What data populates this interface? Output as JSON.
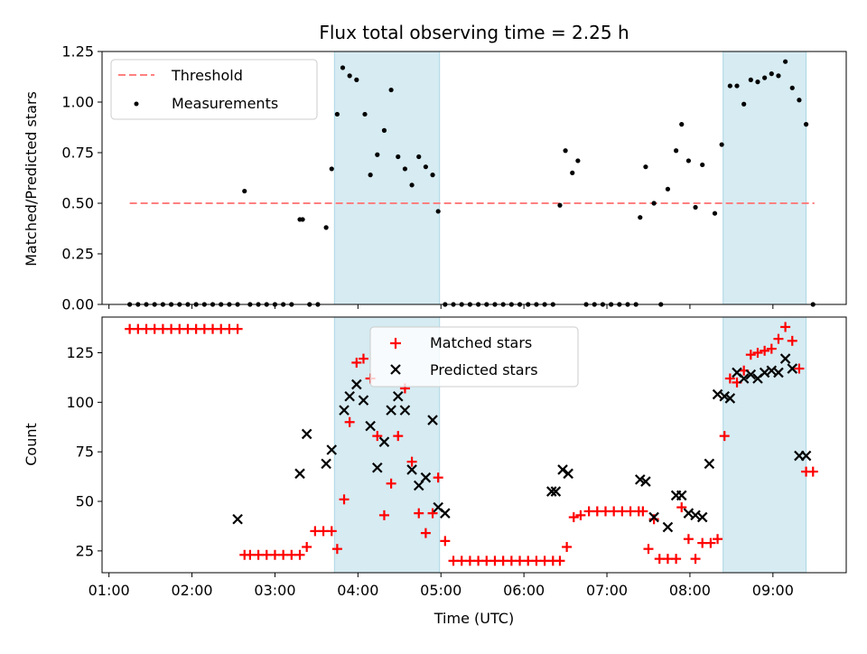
{
  "chart_data": [
    {
      "type": "scatter",
      "title": "Flux total observing time = 2.25 h",
      "xlabel": "",
      "ylabel": "Matched/Predicted stars",
      "ylim": [
        0,
        1.25
      ],
      "yticks": [
        "0.00",
        "0.25",
        "0.50",
        "0.75",
        "1.00",
        "1.25"
      ],
      "legend": {
        "position": "upper-left",
        "entries": [
          "Threshold",
          "Measurements"
        ]
      },
      "threshold": {
        "name": "Threshold",
        "y": 0.5,
        "x_range": [
          "01:15",
          "09:30"
        ],
        "color": "#ff8080",
        "style": "dashed"
      },
      "shaded_intervals": [
        [
          "03:43",
          "04:59"
        ],
        [
          "08:24",
          "09:24"
        ]
      ],
      "series": [
        {
          "name": "Measurements",
          "color": "#000000",
          "x": [
            "01:15",
            "01:21",
            "01:27",
            "01:33",
            "01:39",
            "01:45",
            "01:51",
            "01:57",
            "02:03",
            "02:09",
            "02:15",
            "02:21",
            "02:27",
            "02:33",
            "02:38",
            "02:42",
            "02:48",
            "02:54",
            "03:00",
            "03:06",
            "03:12",
            "03:18",
            "03:20",
            "03:25",
            "03:31",
            "03:37",
            "03:41",
            "03:45",
            "03:49",
            "03:54",
            "03:59",
            "04:05",
            "04:09",
            "04:14",
            "04:19",
            "04:24",
            "04:29",
            "04:34",
            "04:39",
            "04:44",
            "04:49",
            "04:54",
            "04:58",
            "05:03",
            "05:09",
            "05:15",
            "05:21",
            "05:27",
            "05:33",
            "05:39",
            "05:45",
            "05:51",
            "05:57",
            "06:03",
            "06:09",
            "06:15",
            "06:21",
            "06:26",
            "06:30",
            "06:35",
            "06:39",
            "06:45",
            "06:51",
            "06:57",
            "07:03",
            "07:09",
            "07:15",
            "07:21",
            "07:24",
            "07:28",
            "07:34",
            "07:39",
            "07:44",
            "07:50",
            "07:54",
            "07:59",
            "08:04",
            "08:09",
            "08:18",
            "08:23",
            "08:29",
            "08:34",
            "08:39",
            "08:44",
            "08:49",
            "08:54",
            "08:59",
            "09:04",
            "09:09",
            "09:14",
            "09:19",
            "09:24",
            "09:29"
          ],
          "y": [
            0,
            0,
            0,
            0,
            0,
            0,
            0,
            0,
            0,
            0,
            0,
            0,
            0,
            0,
            0.56,
            0,
            0,
            0,
            0,
            0,
            0,
            0.42,
            0.42,
            0,
            0,
            0.38,
            0.67,
            0.94,
            1.17,
            1.13,
            1.11,
            0.94,
            0.64,
            0.74,
            0.86,
            1.06,
            0.73,
            0.67,
            0.59,
            0.73,
            0.68,
            0.64,
            0.46,
            0,
            0,
            0,
            0,
            0,
            0,
            0,
            0,
            0,
            0,
            0,
            0,
            0,
            0,
            0.49,
            0.76,
            0.65,
            0.71,
            0,
            0,
            0,
            0,
            0,
            0,
            0,
            0.43,
            0.68,
            0.5,
            0,
            0.57,
            0.76,
            0.89,
            0.71,
            0.48,
            0.69,
            0.45,
            0.79,
            1.08,
            1.08,
            0.99,
            1.11,
            1.1,
            1.12,
            1.14,
            1.13,
            1.2,
            1.07,
            1.01,
            0.89,
            0
          ]
        }
      ]
    },
    {
      "type": "scatter",
      "title": "",
      "xlabel": "Time (UTC)",
      "ylabel": "Count",
      "ylim": [
        14,
        143
      ],
      "yticks": [
        "25",
        "50",
        "75",
        "100",
        "125"
      ],
      "xticks": [
        "01:00",
        "02:00",
        "03:00",
        "04:00",
        "05:00",
        "06:00",
        "07:00",
        "08:00",
        "09:00"
      ],
      "legend": {
        "position": "upper-center",
        "entries": [
          "Matched stars",
          "Predicted stars"
        ]
      },
      "shaded_intervals": [
        [
          "03:43",
          "04:59"
        ],
        [
          "08:24",
          "09:24"
        ]
      ],
      "series": [
        {
          "name": "Matched stars",
          "marker": "plus",
          "color": "#ff0000",
          "x": [
            "01:15",
            "01:21",
            "01:27",
            "01:33",
            "01:39",
            "01:45",
            "01:51",
            "01:57",
            "02:03",
            "02:09",
            "02:15",
            "02:21",
            "02:27",
            "02:33",
            "02:38",
            "02:42",
            "02:48",
            "02:54",
            "03:00",
            "03:06",
            "03:12",
            "03:18",
            "03:23",
            "03:29",
            "03:35",
            "03:41",
            "03:45",
            "03:50",
            "03:54",
            "03:59",
            "04:04",
            "04:09",
            "04:14",
            "04:19",
            "04:24",
            "04:29",
            "04:34",
            "04:39",
            "04:44",
            "04:49",
            "04:54",
            "04:58",
            "05:03",
            "05:09",
            "05:15",
            "05:21",
            "05:27",
            "05:33",
            "05:39",
            "05:45",
            "05:51",
            "05:57",
            "06:03",
            "06:09",
            "06:15",
            "06:21",
            "06:26",
            "06:31",
            "06:36",
            "06:41",
            "06:47",
            "06:53",
            "06:59",
            "07:05",
            "07:11",
            "07:17",
            "07:23",
            "07:26",
            "07:30",
            "07:34",
            "07:38",
            "07:44",
            "07:50",
            "07:54",
            "07:59",
            "08:04",
            "08:09",
            "08:15",
            "08:20",
            "08:25",
            "08:29",
            "08:34",
            "08:39",
            "08:44",
            "08:49",
            "08:54",
            "08:59",
            "09:04",
            "09:09",
            "09:14",
            "09:19",
            "09:24",
            "09:29"
          ],
          "y": [
            137,
            137,
            137,
            137,
            137,
            137,
            137,
            137,
            137,
            137,
            137,
            137,
            137,
            137,
            23,
            23,
            23,
            23,
            23,
            23,
            23,
            23,
            27,
            35,
            35,
            35,
            26,
            51,
            90,
            120,
            122,
            112,
            83,
            43,
            59,
            83,
            107,
            70,
            44,
            34,
            44,
            62,
            30,
            20,
            20,
            20,
            20,
            20,
            20,
            20,
            20,
            20,
            20,
            20,
            20,
            20,
            20,
            27,
            42,
            43,
            45,
            45,
            45,
            45,
            45,
            45,
            45,
            45,
            26,
            41,
            21,
            21,
            21,
            47,
            31,
            21,
            29,
            29,
            31,
            83,
            112,
            110,
            116,
            124,
            125,
            126,
            127,
            132,
            138,
            131,
            117,
            65,
            65
          ]
        },
        {
          "name": "Predicted stars",
          "marker": "x",
          "color": "#000000",
          "x": [
            "02:33",
            "03:18",
            "03:23",
            "03:37",
            "03:41",
            "03:50",
            "03:54",
            "03:59",
            "04:04",
            "04:09",
            "04:14",
            "04:19",
            "04:24",
            "04:29",
            "04:34",
            "04:39",
            "04:44",
            "04:49",
            "04:54",
            "04:58",
            "05:03",
            "06:20",
            "06:23",
            "06:28",
            "06:32",
            "07:24",
            "07:28",
            "07:34",
            "07:44",
            "07:50",
            "07:54",
            "07:59",
            "08:04",
            "08:09",
            "08:14",
            "08:20",
            "08:25",
            "08:29",
            "08:34",
            "08:39",
            "08:44",
            "08:49",
            "08:54",
            "08:59",
            "09:04",
            "09:09",
            "09:14",
            "09:19",
            "09:24"
          ],
          "y": [
            41,
            64,
            84,
            69,
            76,
            96,
            103,
            109,
            101,
            88,
            67,
            80,
            96,
            103,
            96,
            66,
            58,
            62,
            91,
            47,
            44,
            55,
            55,
            66,
            64,
            61,
            60,
            42,
            37,
            53,
            53,
            44,
            43,
            42,
            69,
            104,
            103,
            102,
            115,
            112,
            114,
            112,
            115,
            116,
            115,
            122,
            117,
            73,
            73
          ]
        }
      ]
    }
  ]
}
